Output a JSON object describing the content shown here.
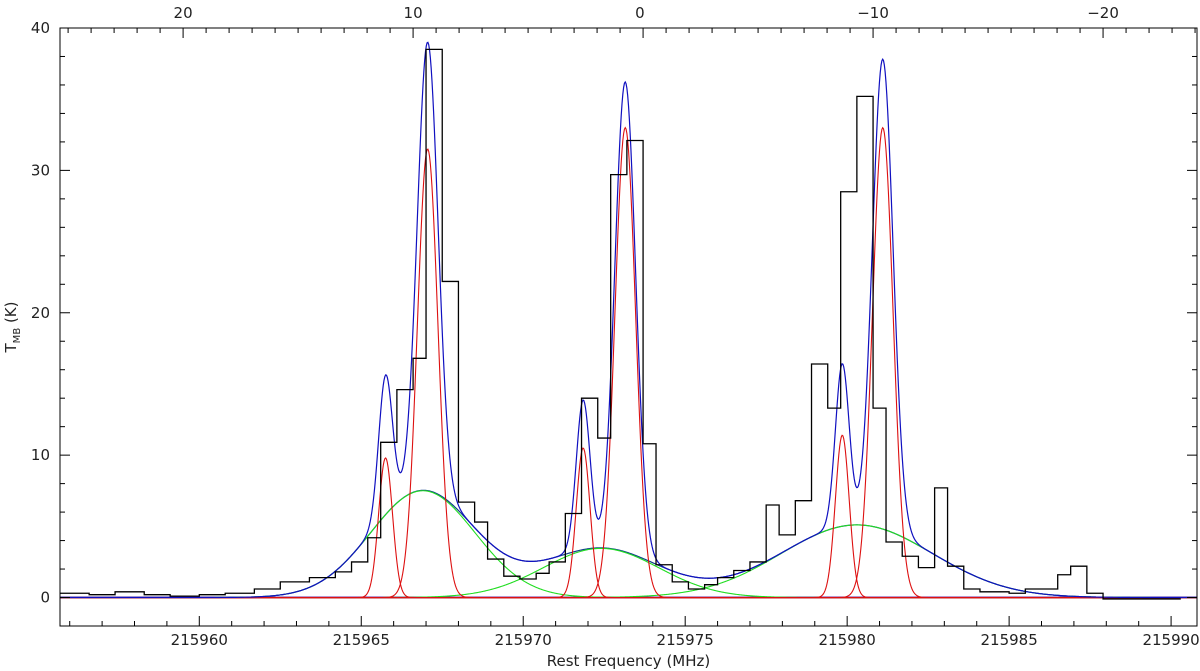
{
  "chart_data": {
    "type": "line",
    "title": "",
    "xlabel": "Rest Frequency (MHz)",
    "ylabel_main": "T",
    "ylabel_sub": "MB",
    "ylabel_unit": " (K)",
    "xlim": [
      215955.7,
      215990.8
    ],
    "ylim": [
      -2,
      40
    ],
    "x_ticks": [
      215960,
      215965,
      215970,
      215975,
      215980,
      215985,
      215990
    ],
    "x_tick_labels": [
      "215960",
      "215965",
      "215970",
      "215975",
      "215980",
      "215985",
      "215990"
    ],
    "y_ticks": [
      0,
      10,
      20,
      30,
      40
    ],
    "y_tick_labels": [
      "0",
      "10",
      "20",
      "30",
      "40"
    ],
    "top_axis": {
      "ticks": [
        {
          "x": 215959.5,
          "label": "20"
        },
        {
          "x": 215966.6,
          "label": "10"
        },
        {
          "x": 215973.6,
          "label": "0"
        },
        {
          "x": 215980.8,
          "label": "−10"
        },
        {
          "x": 215987.9,
          "label": "−20"
        }
      ]
    },
    "grid": false,
    "colors": {
      "spectrum": "#000000",
      "total_fit": "#1010c0",
      "narrow_components": "#dd1010",
      "broad_components": "#20dd20",
      "broad_envelope": "#10408a",
      "baseline": "#7030a0"
    },
    "series": [
      {
        "name": "",
        "kind": "histogram",
        "edges": [
          215955.7,
          215956.6,
          215957.4,
          215958.3,
          215959.1,
          215960.0,
          215960.8,
          215961.7,
          215962.5,
          215963.4,
          215964.2,
          215964.7,
          215965.2,
          215965.6,
          215966.1,
          215966.6,
          215967.0,
          215967.5,
          215968.0,
          215968.5,
          215968.9,
          215969.4,
          215969.9,
          215970.4,
          215970.8,
          215971.3,
          215971.8,
          215972.3,
          215972.7,
          215973.2,
          215973.7,
          215974.1,
          215974.6,
          215975.1,
          215975.6,
          215976.0,
          215976.5,
          215977.0,
          215977.5,
          215977.9,
          215978.4,
          215978.9,
          215979.4,
          215979.8,
          215980.3,
          215980.8,
          215981.2,
          215981.7,
          215982.2,
          215982.7,
          215983.1,
          215983.6,
          215984.1,
          215984.6,
          215985.0,
          215985.5,
          215986.0,
          215986.5,
          215986.9,
          215987.4,
          215987.9,
          215988.3,
          215988.8,
          215989.3,
          215989.8,
          215990.3
        ],
        "values": [
          0.3,
          0.2,
          0.4,
          0.2,
          0.1,
          0.2,
          0.3,
          0.6,
          1.1,
          1.4,
          1.8,
          2.5,
          4.2,
          10.9,
          14.6,
          16.8,
          38.5,
          22.2,
          6.7,
          5.3,
          2.7,
          1.5,
          1.3,
          1.7,
          2.5,
          5.9,
          14.0,
          11.2,
          29.7,
          32.1,
          10.8,
          2.3,
          1.1,
          0.6,
          0.9,
          1.4,
          1.9,
          2.5,
          6.5,
          4.4,
          6.8,
          16.4,
          13.3,
          28.5,
          35.2,
          13.3,
          3.9,
          2.9,
          2.1,
          7.7,
          2.2,
          0.6,
          0.4,
          0.4,
          0.3,
          0.6,
          0.6,
          1.6,
          2.2,
          0.3,
          -0.1,
          -0.1,
          -0.1,
          -0.1,
          -0.1
        ]
      },
      {
        "name": "",
        "kind": "gaussian",
        "role": "narrow",
        "components": [
          {
            "center": 215965.75,
            "amplitude": 9.8,
            "fwhm": 0.5
          },
          {
            "center": 215967.05,
            "amplitude": 31.5,
            "fwhm": 0.75
          },
          {
            "center": 215971.85,
            "amplitude": 10.5,
            "fwhm": 0.5
          },
          {
            "center": 215973.15,
            "amplitude": 33.0,
            "fwhm": 0.75
          },
          {
            "center": 215979.85,
            "amplitude": 11.4,
            "fwhm": 0.5
          },
          {
            "center": 215981.1,
            "amplitude": 33.0,
            "fwhm": 0.75
          }
        ]
      },
      {
        "name": "",
        "kind": "gaussian",
        "role": "broad",
        "components": [
          {
            "center": 215966.9,
            "amplitude": 7.5,
            "fwhm": 3.8
          },
          {
            "center": 215972.4,
            "amplitude": 3.45,
            "fwhm": 4.2
          },
          {
            "center": 215980.3,
            "amplitude": 5.1,
            "fwhm": 5.5
          }
        ]
      }
    ]
  }
}
